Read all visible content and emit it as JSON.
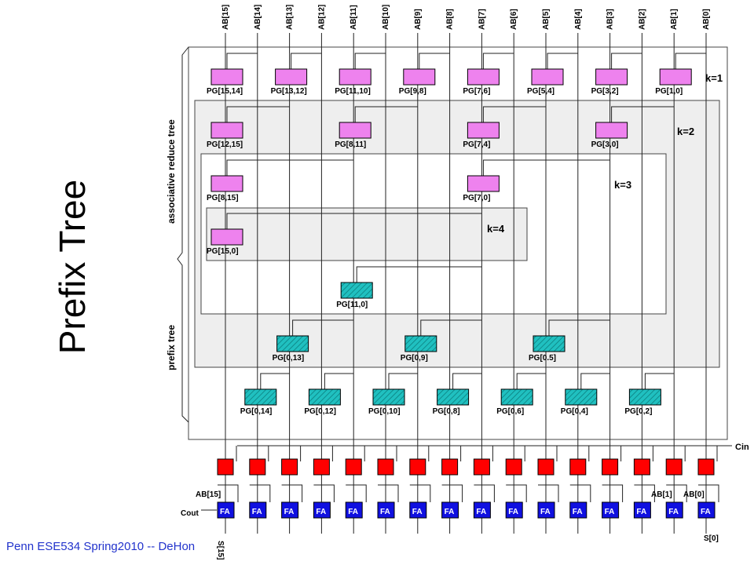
{
  "title": "Prefix Tree",
  "footer": "Penn ESE534 Spring2010 -- DeHon",
  "inputs": [
    "AB[15]",
    "AB[14]",
    "AB[13]",
    "AB[12]",
    "AB[11]",
    "AB[10]",
    "AB[9]",
    "AB[8]",
    "AB[7]",
    "AB[6]",
    "AB[5]",
    "AB[4]",
    "AB[3]",
    "AB[2]",
    "AB[1]",
    "AB[0]"
  ],
  "sections": {
    "reduce": "associative reduce tree",
    "prefix": "prefix tree"
  },
  "levels": [
    {
      "label": "k=1",
      "nodes": [
        "PG[15,14]",
        "PG[13,12]",
        "PG[11,10]",
        "PG[9,8]",
        "PG[7,6]",
        "PG[5,4]",
        "PG[3,2]",
        "PG[1,0]"
      ]
    },
    {
      "label": "k=2",
      "nodes": [
        "PG[12,15]",
        "PG[8,11]",
        "PG[7,4]",
        "PG[3,0]"
      ]
    },
    {
      "label": "k=3",
      "nodes": [
        "PG[8,15]",
        "PG[7,0]"
      ]
    },
    {
      "label": "k=4",
      "nodes": [
        "PG[15,0]"
      ]
    }
  ],
  "prefix_nodes": {
    "row1": [
      "PG[11,0]"
    ],
    "row2": [
      "PG[0,13]",
      "PG[0,9]",
      "PG[0.5]"
    ],
    "row3": [
      "PG[0,14]",
      "PG[0,12]",
      "PG[0,10]",
      "PG[0,8]",
      "PG[0,6]",
      "PG[0,4]",
      "PG[0,2]"
    ]
  },
  "bottom": {
    "cin": "Cin",
    "cout": "Cout",
    "fa_label": "FA",
    "fa_count": 16,
    "ab15": "AB[15]",
    "ab1": "AB[1]",
    "ab0": "AB[0]",
    "s15": "S[15]",
    "s0": "S[0]"
  },
  "colors": {
    "reduce_node": "#ee82ee",
    "prefix_node": "#20c0c0",
    "mux": "#ff0000",
    "fa": "#1010e0",
    "panel": "#eeeeee",
    "footer_text": "#2233cc"
  }
}
